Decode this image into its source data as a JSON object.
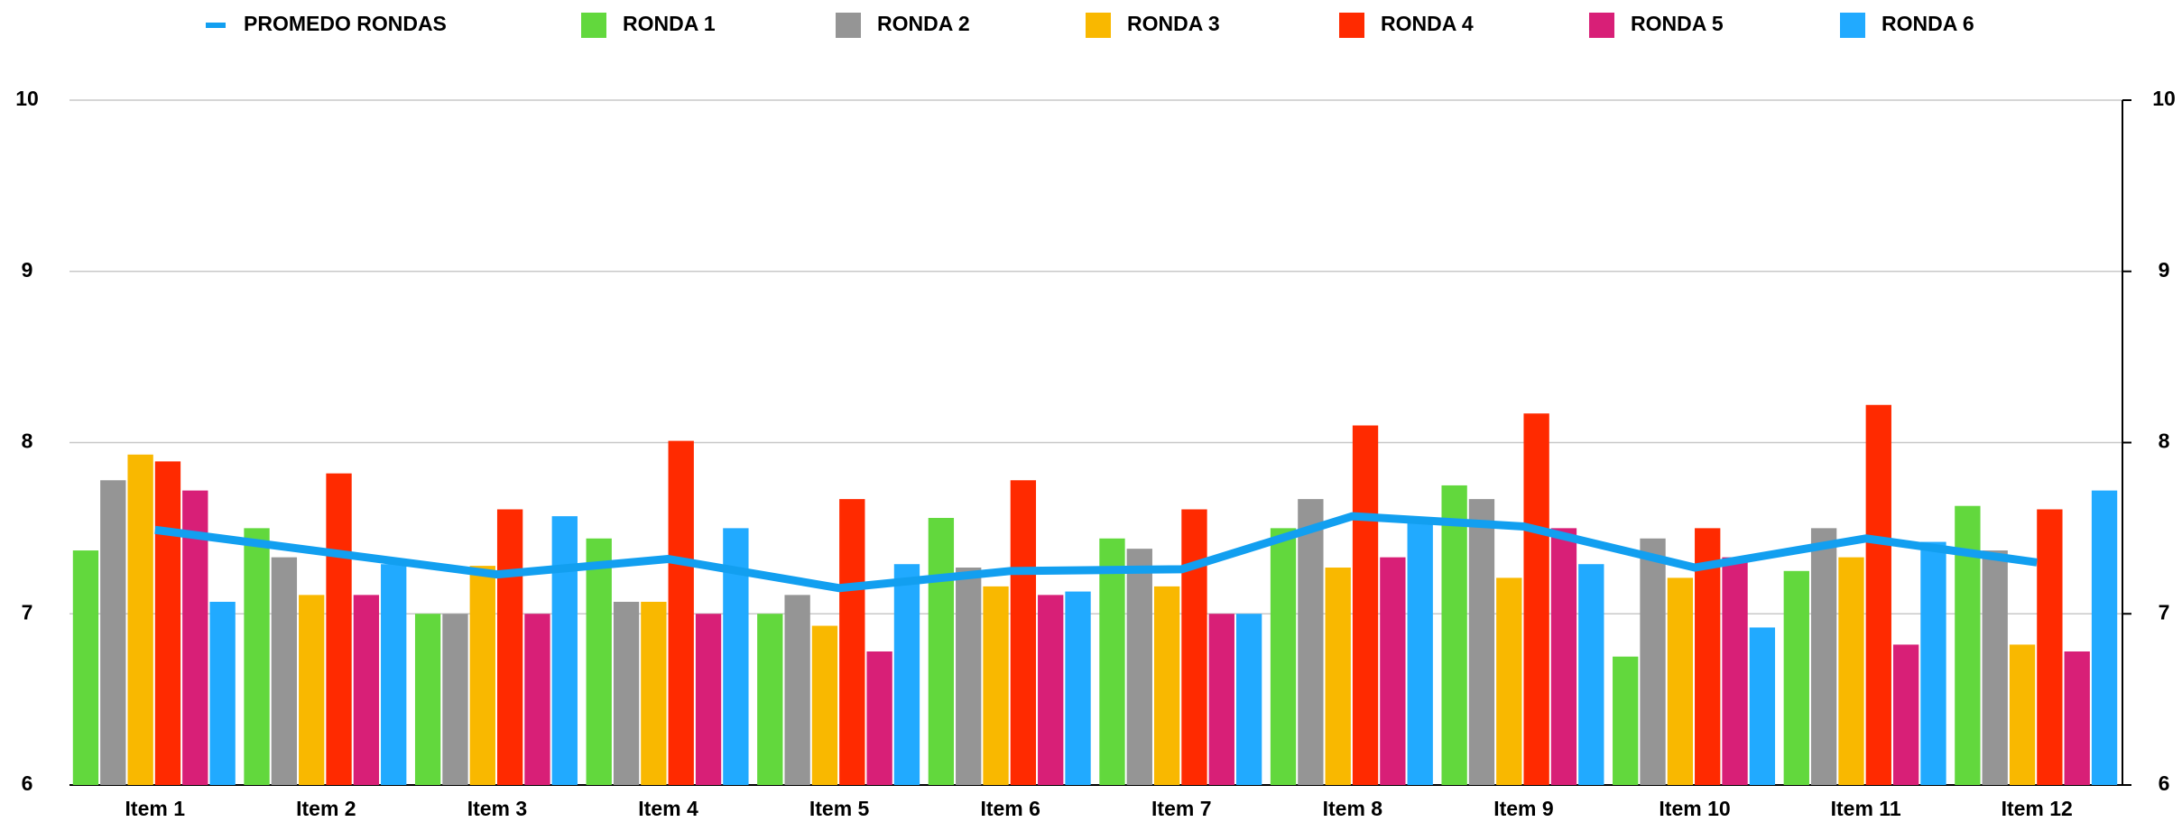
{
  "chart_data": {
    "type": "bar",
    "categories": [
      "Item 1",
      "Item 2",
      "Item 3",
      "Item 4",
      "Item 5",
      "Item 6",
      "Item 7",
      "Item 8",
      "Item 9",
      "Item 10",
      "Item 11",
      "Item 12"
    ],
    "series": [
      {
        "name": "PROMEDO RONDAS",
        "type": "line",
        "color": "#129ff0",
        "values": [
          7.49,
          7.36,
          7.23,
          7.32,
          7.15,
          7.25,
          7.26,
          7.57,
          7.51,
          7.27,
          7.44,
          7.3
        ]
      },
      {
        "name": "RONDA 1",
        "color": "#62d83d",
        "values": [
          7.37,
          7.5,
          7.0,
          7.44,
          7.0,
          7.56,
          7.44,
          7.5,
          7.75,
          6.75,
          7.25,
          7.63
        ]
      },
      {
        "name": "RONDA 2",
        "color": "#959595",
        "values": [
          7.78,
          7.33,
          7.0,
          7.07,
          7.11,
          7.27,
          7.38,
          7.67,
          7.67,
          7.44,
          7.5,
          7.37
        ]
      },
      {
        "name": "RONDA 3",
        "color": "#f9b800",
        "values": [
          7.93,
          7.11,
          7.28,
          7.07,
          6.93,
          7.16,
          7.16,
          7.27,
          7.21,
          7.21,
          7.33,
          6.82
        ]
      },
      {
        "name": "RONDA 4",
        "color": "#ff2a00",
        "values": [
          7.89,
          7.82,
          7.61,
          8.01,
          7.67,
          7.78,
          7.61,
          8.1,
          8.17,
          7.5,
          8.22,
          7.61
        ]
      },
      {
        "name": "RONDA 5",
        "color": "#d81f77",
        "values": [
          7.72,
          7.11,
          7.0,
          7.0,
          6.78,
          7.11,
          7.0,
          7.33,
          7.5,
          7.33,
          6.82,
          6.78
        ]
      },
      {
        "name": "RONDA 6",
        "color": "#21aaff",
        "values": [
          7.07,
          7.29,
          7.57,
          7.5,
          7.29,
          7.13,
          7.0,
          7.56,
          7.29,
          6.92,
          7.42,
          7.72
        ]
      }
    ],
    "ylim": [
      6,
      10
    ],
    "yticks": [
      6,
      7,
      8,
      9,
      10
    ],
    "y2lim": [
      6,
      10
    ],
    "y2ticks": [
      6,
      7,
      8,
      9,
      10
    ],
    "grid": true,
    "legend": "top"
  }
}
